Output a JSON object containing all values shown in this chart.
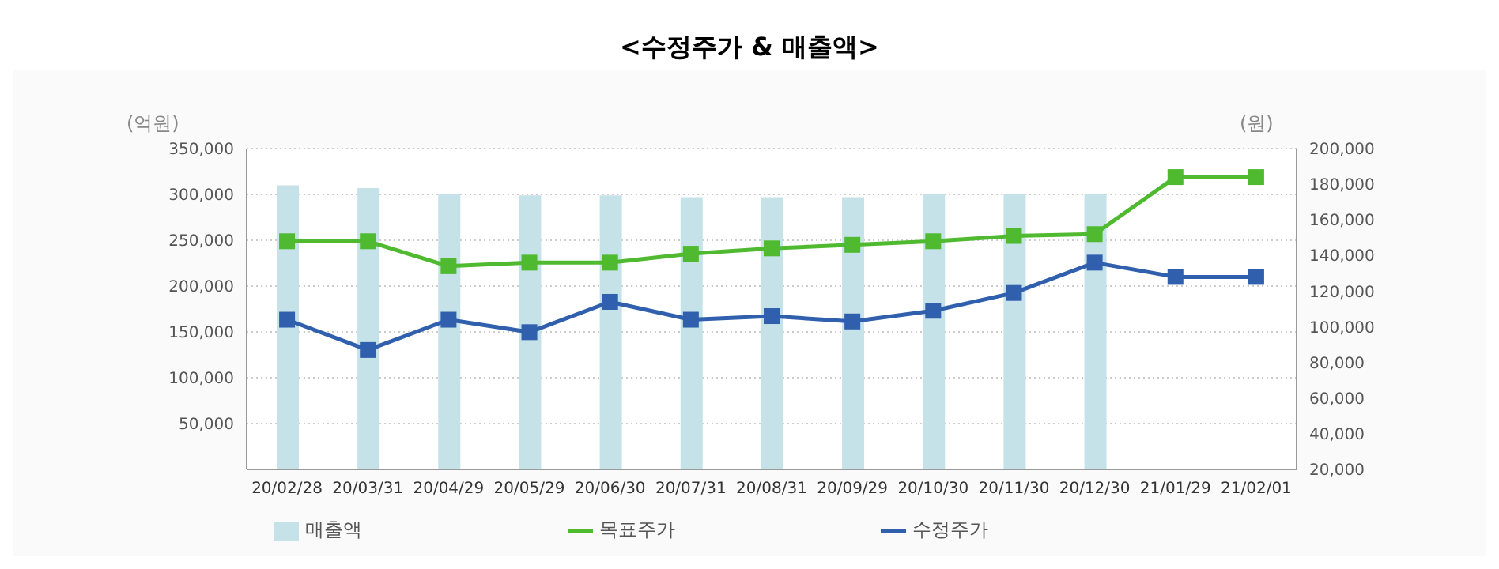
{
  "chart_data": {
    "type": "line",
    "title": "<수정주가 & 매출액>",
    "ylabel": "(억원)",
    "y2label": "(원)",
    "categories": [
      "20/02/28",
      "20/03/31",
      "20/04/29",
      "20/05/29",
      "20/06/30",
      "20/07/31",
      "20/08/31",
      "20/09/29",
      "20/10/30",
      "20/11/30",
      "20/12/30",
      "21/01/29",
      "21/02/01"
    ],
    "series": [
      {
        "name": "매출액",
        "type": "bar",
        "color": "#c5e2e9",
        "values": [
          310000,
          307000,
          300000,
          299000,
          299000,
          297000,
          297000,
          297000,
          300000,
          300000,
          300000,
          null,
          null
        ]
      },
      {
        "name": "수정주가",
        "axis": "y2",
        "color": "#2f5fad",
        "values": [
          104000,
          87000,
          104000,
          97000,
          114000,
          104000,
          106000,
          103000,
          109000,
          119000,
          136000,
          128000,
          128000
        ]
      },
      {
        "name": "목표주가",
        "axis": "y2",
        "color": "#4fba2f",
        "values": [
          148000,
          148000,
          134000,
          136000,
          136000,
          141000,
          144000,
          146000,
          148000,
          151000,
          152000,
          184000,
          184000
        ]
      }
    ],
    "ylim": [
      0,
      350000
    ],
    "yticks": [
      {
        "value": 0,
        "label": null
      },
      {
        "value": 50000,
        "label": "50,000"
      },
      {
        "value": 100000,
        "label": "100,000"
      },
      {
        "value": 150000,
        "label": "150,000"
      },
      {
        "value": 200000,
        "label": "200,000"
      },
      {
        "value": 250000,
        "label": "250,000"
      },
      {
        "value": 300000,
        "label": "300,000"
      },
      {
        "value": 350000,
        "label": "350,000"
      }
    ],
    "y2lim": [
      20000,
      200000
    ],
    "y2ticks": [
      {
        "value": 20000,
        "label": "20,000"
      },
      {
        "value": 40000,
        "label": "40,000"
      },
      {
        "value": 60000,
        "label": "60,000"
      },
      {
        "value": 80000,
        "label": "80,000"
      },
      {
        "value": 100000,
        "label": "100,000"
      },
      {
        "value": 120000,
        "label": "120,000"
      },
      {
        "value": 140000,
        "label": "140,000"
      },
      {
        "value": 160000,
        "label": "160,000"
      },
      {
        "value": 180000,
        "label": "180,000"
      },
      {
        "value": 200000,
        "label": "200,000"
      }
    ],
    "grid": "y",
    "legend": "bottom",
    "marker": "square",
    "line_style": "solid"
  }
}
